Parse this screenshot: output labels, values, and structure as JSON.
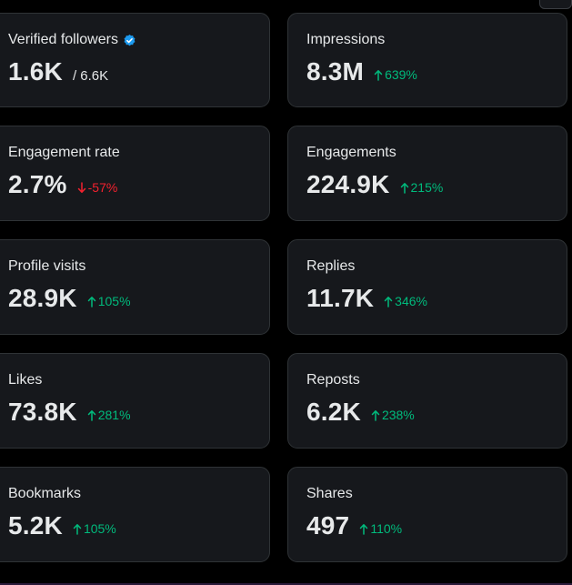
{
  "cards": [
    {
      "label": "Verified followers",
      "value": "1.6K",
      "suffix": "/ 6.6K",
      "verified": true
    },
    {
      "label": "Impressions",
      "value": "8.3M",
      "change": "639%",
      "direction": "up"
    },
    {
      "label": "Engagement rate",
      "value": "2.7%",
      "change": "-57%",
      "direction": "down"
    },
    {
      "label": "Engagements",
      "value": "224.9K",
      "change": "215%",
      "direction": "up"
    },
    {
      "label": "Profile visits",
      "value": "28.9K",
      "change": "105%",
      "direction": "up"
    },
    {
      "label": "Replies",
      "value": "11.7K",
      "change": "346%",
      "direction": "up"
    },
    {
      "label": "Likes",
      "value": "73.8K",
      "change": "281%",
      "direction": "up"
    },
    {
      "label": "Reposts",
      "value": "6.2K",
      "change": "238%",
      "direction": "up"
    },
    {
      "label": "Bookmarks",
      "value": "5.2K",
      "change": "105%",
      "direction": "up"
    },
    {
      "label": "Shares",
      "value": "497",
      "change": "110%",
      "direction": "up"
    }
  ],
  "icons": {
    "verified": "verified-badge-icon",
    "up": "arrow-up-icon",
    "down": "arrow-down-icon"
  },
  "colors": {
    "background": "#000000",
    "card": "#16181c",
    "border": "#2f3336",
    "text": "#e7e9ea",
    "positive": "#00ba7c",
    "negative": "#f4212e",
    "verified": "#1d9bf0"
  }
}
